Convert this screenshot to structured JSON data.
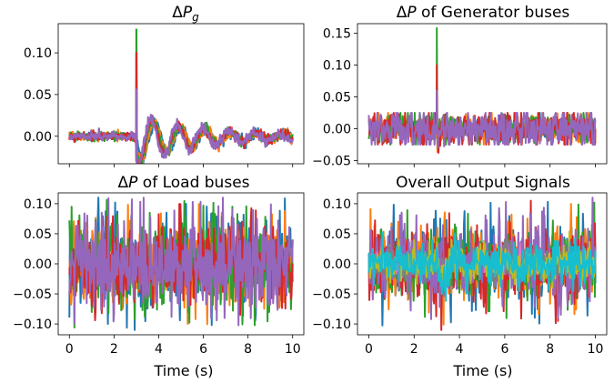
{
  "chart_data": [
    {
      "type": "line",
      "title": "ΔP_g",
      "title_html": {
        "prefix": "Δ",
        "italic": "P",
        "sub": "g",
        "rest": ""
      },
      "xlabel": "",
      "ylabel": "",
      "xlim": [
        -0.5,
        10.5
      ],
      "ylim": [
        -0.033,
        0.135
      ],
      "xticks": [
        0,
        2,
        4,
        6,
        8,
        10
      ],
      "show_xtick_labels": false,
      "yticks": [
        -0.05,
        0.0,
        0.05,
        0.1
      ],
      "ytick_labels": [
        "",
        "0.00",
        "0.05",
        "0.10"
      ],
      "grid": false,
      "signal": {
        "kind": "damped_oscillation",
        "event_time": 3.0,
        "spike_peak": 0.128,
        "baseline_noise": 0.0025,
        "osc_amplitude": 0.03,
        "osc_period": 1.15,
        "osc_decay": 0.35,
        "dip_after_event": -0.022
      },
      "series": [
        {
          "color": "#1f77b4",
          "peak": 0.06
        },
        {
          "color": "#ff7f0e",
          "peak": 0.07
        },
        {
          "color": "#2ca02c",
          "peak": 0.128
        },
        {
          "color": "#d62728",
          "peak": 0.1
        },
        {
          "color": "#9467bd",
          "peak": 0.056
        }
      ]
    },
    {
      "type": "line",
      "title": "ΔP of Generator buses",
      "title_html": {
        "prefix": "Δ",
        "italic": "P",
        "sub": "",
        "rest": " of Generator buses"
      },
      "xlabel": "",
      "ylabel": "",
      "xlim": [
        -0.5,
        10.5
      ],
      "ylim": [
        -0.055,
        0.165
      ],
      "xticks": [
        0,
        2,
        4,
        6,
        8,
        10
      ],
      "show_xtick_labels": false,
      "yticks": [
        -0.05,
        0.0,
        0.05,
        0.1,
        0.15
      ],
      "ytick_labels": [
        "−0.05",
        "0.00",
        "0.05",
        "0.10",
        "0.15"
      ],
      "grid": false,
      "signal": {
        "kind": "noise_with_spike",
        "event_time": 3.0,
        "spike_peak": 0.158,
        "noise_amplitude": 0.012,
        "max_extent": 0.025
      },
      "series": [
        {
          "color": "#1f77b4",
          "peak": 0.05
        },
        {
          "color": "#ff7f0e",
          "peak": 0.07
        },
        {
          "color": "#2ca02c",
          "peak": 0.158
        },
        {
          "color": "#d62728",
          "peak": 0.1
        },
        {
          "color": "#9467bd",
          "peak": 0.06
        }
      ]
    },
    {
      "type": "line",
      "title": "ΔP of Load buses",
      "title_html": {
        "prefix": "Δ",
        "italic": "P",
        "sub": "",
        "rest": " of Load buses"
      },
      "xlabel": "Time (s)",
      "ylabel": "",
      "xlim": [
        -0.5,
        10.5
      ],
      "ylim": [
        -0.118,
        0.118
      ],
      "xticks": [
        0,
        2,
        4,
        6,
        8,
        10
      ],
      "xtick_labels": [
        "0",
        "2",
        "4",
        "6",
        "8",
        "10"
      ],
      "show_xtick_labels": true,
      "yticks": [
        -0.1,
        -0.05,
        0.0,
        0.05,
        0.1
      ],
      "ytick_labels": [
        "−0.10",
        "−0.05",
        "0.00",
        "0.05",
        "0.10"
      ],
      "grid": false,
      "signal": {
        "kind": "white_noise",
        "noise_amplitude": 0.035,
        "max_extent": 0.11
      },
      "series": [
        {
          "color": "#1f77b4"
        },
        {
          "color": "#ff7f0e"
        },
        {
          "color": "#2ca02c"
        },
        {
          "color": "#d62728"
        },
        {
          "color": "#9467bd"
        }
      ]
    },
    {
      "type": "line",
      "title": "Overall Output Signals",
      "title_html": {
        "prefix": "",
        "italic": "",
        "sub": "",
        "rest": "Overall Output Signals"
      },
      "xlabel": "Time (s)",
      "ylabel": "",
      "xlim": [
        -0.5,
        10.5
      ],
      "ylim": [
        -0.118,
        0.118
      ],
      "xticks": [
        0,
        2,
        4,
        6,
        8,
        10
      ],
      "xtick_labels": [
        "0",
        "2",
        "4",
        "6",
        "8",
        "10"
      ],
      "show_xtick_labels": true,
      "yticks": [
        -0.1,
        -0.05,
        0.0,
        0.05,
        0.1
      ],
      "ytick_labels": [
        "−0.10",
        "−0.05",
        "0.00",
        "0.05",
        "0.10"
      ],
      "grid": false,
      "signal": {
        "kind": "mixed",
        "noise_amplitude": 0.03,
        "max_extent": 0.11,
        "event_time": 3.0
      },
      "series": [
        {
          "color": "#1f77b4"
        },
        {
          "color": "#ff7f0e"
        },
        {
          "color": "#2ca02c"
        },
        {
          "color": "#d62728"
        },
        {
          "color": "#9467bd"
        },
        {
          "color": "#8c564b"
        },
        {
          "color": "#e377c2"
        },
        {
          "color": "#7f7f7f"
        },
        {
          "color": "#bcbd22"
        },
        {
          "color": "#17becf"
        }
      ]
    }
  ]
}
